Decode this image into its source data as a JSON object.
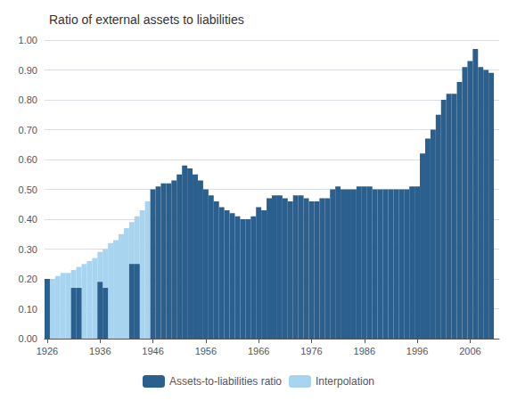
{
  "chart_data": {
    "type": "bar",
    "title": "Ratio of external assets to liabilities",
    "x": [
      1926,
      1927,
      1928,
      1929,
      1930,
      1931,
      1932,
      1933,
      1934,
      1935,
      1936,
      1937,
      1938,
      1939,
      1940,
      1941,
      1942,
      1943,
      1944,
      1945,
      1946,
      1947,
      1948,
      1949,
      1950,
      1951,
      1952,
      1953,
      1954,
      1955,
      1956,
      1957,
      1958,
      1959,
      1960,
      1961,
      1962,
      1963,
      1964,
      1965,
      1966,
      1967,
      1968,
      1969,
      1970,
      1971,
      1972,
      1973,
      1974,
      1975,
      1976,
      1977,
      1978,
      1979,
      1980,
      1981,
      1982,
      1983,
      1984,
      1985,
      1986,
      1987,
      1988,
      1989,
      1990,
      1991,
      1992,
      1993,
      1994,
      1995,
      1996,
      1997,
      1998,
      1999,
      2000,
      2001,
      2002,
      2003,
      2004,
      2005,
      2006,
      2007,
      2008,
      2009,
      2010
    ],
    "series": [
      {
        "name": "Assets-to-liabilities ratio",
        "color": "#2B5F8E",
        "values": [
          0.2,
          null,
          null,
          null,
          null,
          0.17,
          0.17,
          null,
          null,
          null,
          0.19,
          0.17,
          null,
          null,
          null,
          null,
          0.25,
          0.25,
          null,
          null,
          0.5,
          0.51,
          0.52,
          0.52,
          0.53,
          0.55,
          0.58,
          0.57,
          0.55,
          0.53,
          0.5,
          0.48,
          0.46,
          0.44,
          0.43,
          0.42,
          0.41,
          0.4,
          0.4,
          0.41,
          0.44,
          0.43,
          0.47,
          0.48,
          0.48,
          0.47,
          0.46,
          0.48,
          0.48,
          0.47,
          0.46,
          0.46,
          0.47,
          0.47,
          0.5,
          0.51,
          0.5,
          0.5,
          0.5,
          0.51,
          0.51,
          0.51,
          0.5,
          0.5,
          0.5,
          0.5,
          0.5,
          0.5,
          0.5,
          0.51,
          0.51,
          0.62,
          0.67,
          0.7,
          0.75,
          0.8,
          0.82,
          0.82,
          0.86,
          0.91,
          0.93,
          0.97,
          0.91,
          0.9,
          0.89
        ]
      },
      {
        "name": "Interpolation",
        "color": "#A8D4F0",
        "values": [
          0.2,
          0.2,
          0.21,
          0.22,
          0.22,
          0.23,
          0.24,
          0.25,
          0.26,
          0.27,
          0.29,
          0.3,
          0.32,
          0.33,
          0.35,
          0.37,
          0.39,
          0.41,
          0.43,
          0.46,
          null,
          null,
          null,
          null,
          null,
          null,
          null,
          null,
          null,
          null,
          null,
          null,
          null,
          null,
          null,
          null,
          null,
          null,
          null,
          null,
          null,
          null,
          null,
          null,
          null,
          null,
          null,
          null,
          null,
          null,
          null,
          null,
          null,
          null,
          null,
          null,
          null,
          null,
          null,
          null,
          null,
          null,
          null,
          null,
          null,
          null,
          null,
          null,
          null,
          null,
          null,
          null,
          null,
          null,
          null,
          null,
          null,
          null,
          null,
          null,
          null,
          null,
          null,
          null,
          null
        ]
      }
    ],
    "xlim": [
      1925.5,
      2011.5
    ],
    "xticks": [
      1926,
      1936,
      1946,
      1956,
      1966,
      1976,
      1986,
      1996,
      2006
    ],
    "ylim": [
      0.0,
      1.0
    ],
    "yticks": [
      {
        "value": 0.0,
        "label": "0.00"
      },
      {
        "value": 0.1,
        "label": "0.10"
      },
      {
        "value": 0.2,
        "label": "0.20"
      },
      {
        "value": 0.3,
        "label": "0.30"
      },
      {
        "value": 0.4,
        "label": "0.40"
      },
      {
        "value": 0.5,
        "label": "0.50"
      },
      {
        "value": 0.6,
        "label": "0.60"
      },
      {
        "value": 0.7,
        "label": "0.70"
      },
      {
        "value": 0.8,
        "label": "0.80"
      },
      {
        "value": 0.9,
        "label": "0.90"
      },
      {
        "value": 1.0,
        "label": "1.00"
      }
    ],
    "grid": true,
    "legend": "bottom"
  }
}
